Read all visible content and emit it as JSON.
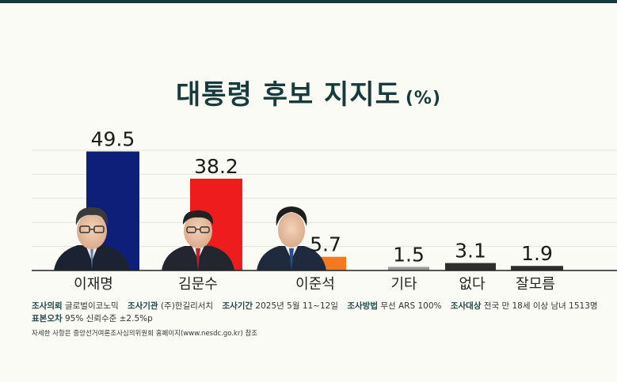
{
  "title": "대통령 후보 지지도",
  "title_unit": "(%)",
  "colors": {
    "title": "#173b3b",
    "bar_lee_jaemyung": "#0e1f7a",
    "bar_kim_moonsoo": "#ee1c1c",
    "bar_lee_junseok": "#f5791e",
    "bar_other": "#9a9a9a",
    "bar_none": "#2e2e2e",
    "bar_dunno": "#2e2e2e"
  },
  "chart_data": {
    "type": "bar",
    "categories": [
      "이재명",
      "김문수",
      "이준석",
      "기타",
      "없다",
      "잘모름"
    ],
    "values": [
      49.5,
      38.2,
      5.7,
      1.5,
      3.1,
      1.9
    ],
    "value_labels": [
      "49.5",
      "38.2",
      "5.7",
      "1.5",
      "3.1",
      "1.9"
    ],
    "ylim": [
      0,
      50
    ],
    "grid": true
  },
  "footer": {
    "requester_key": "조사의뢰",
    "requester_val": "글로벌이코노믹",
    "agency_key": "조사기관",
    "agency_val": "(주)한길리서치",
    "period_key": "조사기간",
    "period_val": "2025년 5월 11~12일",
    "method_key": "조사방법",
    "method_val": "무선 ARS 100%",
    "target_key": "조사대상",
    "target_val": "전국 만 18세 이상 남녀 1513명",
    "error_key": "표본오차",
    "error_val": "95% 신뢰수준 ±2.5%p",
    "note": "자세한 사항은 중앙선거여론조사심의위원회 홈페이지(www.nesdc.go.kr) 참조"
  }
}
